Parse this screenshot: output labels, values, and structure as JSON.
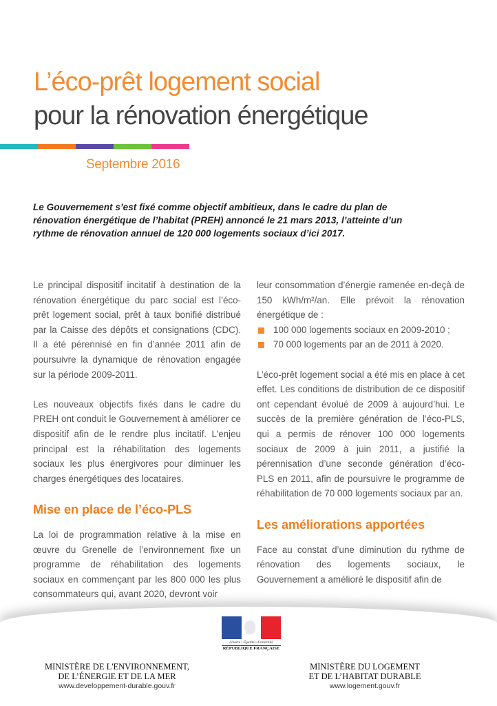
{
  "header": {
    "title_line1": "L’éco-prêt logement social",
    "title_line2": "pour la rénovation énergétique",
    "date": "Septembre 2016",
    "color_bar": [
      "#22b8c0",
      "#f47a1f",
      "#5a4aa8",
      "#6cc43a",
      "#ee3a8c"
    ]
  },
  "intro": "Le Gouvernement s’est fixé comme objectif ambitieux, dans le cadre du plan de rénovation énergétique de l’habitat (PREH) annoncé le 21 mars 2013, l’atteinte d’un rythme de rénovation annuel de 120 000 logements sociaux d’ici 2017.",
  "left": {
    "p1": "Le principal dispositif incitatif à destination de la rénovation énergétique du parc social est l’éco-prêt logement social, prêt à taux bonifié distribué par la Caisse des dépôts et consignations (CDC). Il a été pérennisé en fin d’année 2011 afin de poursuivre la dynamique de rénovation engagée sur la période 2009-2011.",
    "p2": "Les nouveaux objectifs fixés dans le cadre du PREH ont conduit le Gouvernement à améliorer ce dispositif afin de le rendre plus incitatif. L’enjeu principal est la réhabilitation des logements sociaux les plus énergivores pour diminuer les charges énergétiques des locataires.",
    "heading": "Mise en place de l’éco-PLS",
    "p3": "La loi de programmation relative à la mise en œuvre du Grenelle de l’environnement fixe un programme de réhabilitation des logements sociaux en commençant par les 800 000 les plus consommateurs qui, avant 2020, devront voir"
  },
  "right": {
    "p1": "leur consommation d’énergie ramenée en-deçà de 150 kWh/m²/an. Elle prévoit la rénovation énergétique de :",
    "bullets": [
      "100 000 logements sociaux en 2009-2010 ;",
      "70 000 logements par an de 2011 à 2020."
    ],
    "p2": "L’éco-prêt logement social a été mis en place à cet effet. Les conditions de distribution de ce dispositif ont cependant évolué de 2009 à aujourd’hui. Le succès de la première génération de l’éco-PLS, qui a permis de rénover 100 000 logements sociaux de 2009 à juin 2011, a justifié la pérennisation d’une seconde génération d’éco-PLS en 2011, afin de poursuivre le programme de réhabilitation de 70 000 logements sociaux par an.",
    "heading": "Les améliorations apportées",
    "p3": "Face au constat d’une diminution du rythme de rénovation des logements sociaux, le Gouvernement a amélioré le dispositif afin de"
  },
  "footer": {
    "logo_motto": "Liberté • Égalité • Fraternité",
    "logo_name": "RÉPUBLIQUE FRANÇAISE",
    "ministry_left_1": "MINISTÈRE DE L'ENVIRONNEMENT,",
    "ministry_left_2": "DE L’ÉNERGIE ET DE LA MER",
    "url_left": "www.developpement-durable.gouv.fr",
    "ministry_right_1": "MINISTÈRE DU LOGEMENT",
    "ministry_right_2": "ET DE L’HABITAT DURABLE",
    "url_right": "www.logement.gouv.fr"
  }
}
